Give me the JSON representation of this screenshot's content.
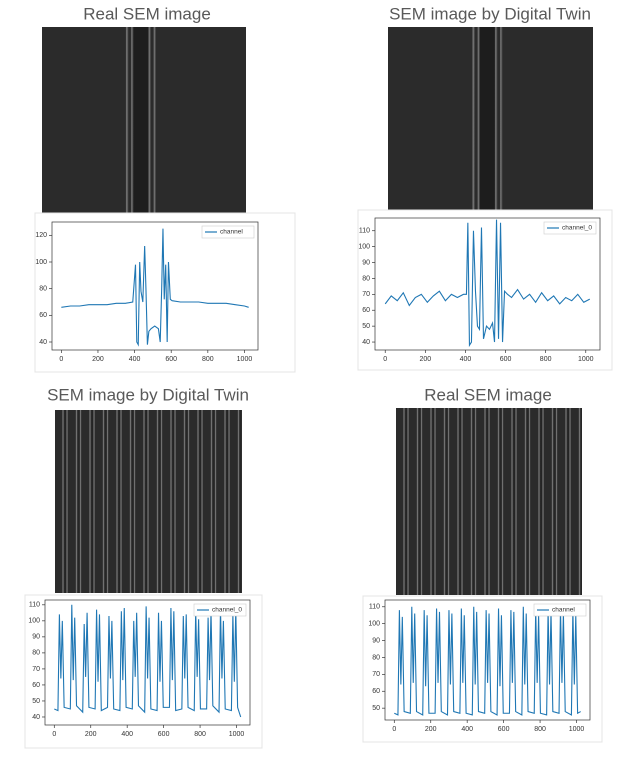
{
  "chart_data": [
    {
      "type": "line",
      "title": "Real SEM image",
      "x": [
        0,
        50,
        100,
        150,
        200,
        250,
        300,
        350,
        390,
        405,
        412,
        420,
        428,
        435,
        445,
        455,
        462,
        470,
        478,
        490,
        510,
        530,
        540,
        548,
        555,
        562,
        570,
        578,
        585,
        595,
        605,
        650,
        700,
        750,
        800,
        850,
        900,
        950,
        1000,
        1023
      ],
      "series": [
        {
          "name": "channel",
          "color": "#1f77b4",
          "values": [
            66,
            67,
            67,
            68,
            68,
            68,
            69,
            69,
            70,
            98,
            40,
            38,
            100,
            78,
            70,
            112,
            80,
            38,
            48,
            50,
            52,
            50,
            40,
            80,
            125,
            72,
            98,
            40,
            100,
            72,
            71,
            70,
            70,
            70,
            69,
            69,
            69,
            68,
            67,
            66
          ]
        }
      ],
      "xlim": [
        -51,
        1074
      ],
      "ylim": [
        34,
        130
      ],
      "xticks": [
        0,
        200,
        400,
        600,
        800,
        1000
      ],
      "yticks": [
        40,
        60,
        80,
        100,
        120
      ],
      "legend": "upper right"
    },
    {
      "type": "line",
      "title": "SEM image by Digital Twin",
      "x": [
        0,
        30,
        60,
        90,
        120,
        150,
        180,
        210,
        240,
        270,
        300,
        330,
        360,
        390,
        405,
        412,
        420,
        430,
        440,
        450,
        460,
        470,
        480,
        490,
        505,
        520,
        535,
        545,
        555,
        565,
        575,
        585,
        595,
        610,
        630,
        660,
        690,
        720,
        750,
        780,
        810,
        840,
        870,
        900,
        930,
        960,
        990,
        1020
      ],
      "series": [
        {
          "name": "channel_0",
          "color": "#1f77b4",
          "values": [
            64,
            69,
            66,
            71,
            63,
            68,
            70,
            65,
            69,
            72,
            66,
            70,
            68,
            70,
            70,
            115,
            38,
            40,
            110,
            72,
            50,
            48,
            112,
            42,
            50,
            48,
            52,
            40,
            117,
            42,
            115,
            40,
            72,
            70,
            68,
            73,
            67,
            70,
            65,
            71,
            66,
            69,
            64,
            68,
            66,
            70,
            65,
            67
          ]
        }
      ],
      "xlim": [
        -51,
        1071
      ],
      "ylim": [
        35,
        118
      ],
      "xticks": [
        0,
        200,
        400,
        600,
        800,
        1000
      ],
      "yticks": [
        40,
        50,
        60,
        70,
        80,
        90,
        100,
        110
      ],
      "legend": "upper right"
    },
    {
      "type": "line",
      "title": "SEM image by Digital Twin",
      "x": [
        0,
        20,
        28,
        36,
        44,
        54,
        88,
        96,
        104,
        112,
        122,
        156,
        164,
        172,
        180,
        190,
        224,
        232,
        240,
        248,
        258,
        292,
        300,
        308,
        316,
        326,
        360,
        368,
        376,
        384,
        394,
        428,
        436,
        444,
        452,
        462,
        496,
        504,
        512,
        520,
        530,
        564,
        572,
        580,
        588,
        598,
        632,
        640,
        648,
        656,
        666,
        700,
        708,
        716,
        724,
        734,
        768,
        776,
        784,
        792,
        802,
        836,
        844,
        852,
        860,
        870,
        904,
        912,
        920,
        928,
        938,
        972,
        980,
        988,
        996,
        1006,
        1023
      ],
      "series": [
        {
          "name": "channel_0",
          "color": "#1f77b4",
          "values": [
            45,
            44,
            104,
            64,
            100,
            46,
            45,
            110,
            63,
            102,
            47,
            43,
            98,
            65,
            105,
            46,
            45,
            107,
            62,
            104,
            44,
            46,
            103,
            64,
            100,
            45,
            44,
            106,
            63,
            108,
            46,
            45,
            100,
            65,
            105,
            47,
            43,
            109,
            64,
            102,
            45,
            44,
            105,
            62,
            100,
            46,
            46,
            108,
            63,
            106,
            44,
            45,
            103,
            64,
            104,
            46,
            44,
            107,
            65,
            101,
            45,
            45,
            102,
            63,
            106,
            47,
            43,
            108,
            64,
            100,
            45,
            44,
            104,
            62,
            107,
            46,
            40
          ]
        }
      ],
      "xlim": [
        -51,
        1074
      ],
      "ylim": [
        35,
        113
      ],
      "xticks": [
        0,
        200,
        400,
        600,
        800,
        1000
      ],
      "yticks": [
        40,
        50,
        60,
        70,
        80,
        90,
        100,
        110
      ],
      "legend": "upper right"
    },
    {
      "type": "line",
      "title": "Real SEM image",
      "x": [
        0,
        20,
        28,
        36,
        44,
        54,
        88,
        96,
        104,
        112,
        122,
        156,
        164,
        172,
        180,
        190,
        224,
        232,
        240,
        248,
        258,
        292,
        300,
        308,
        316,
        326,
        360,
        368,
        376,
        384,
        394,
        428,
        436,
        444,
        452,
        462,
        496,
        504,
        512,
        520,
        530,
        564,
        572,
        580,
        588,
        598,
        632,
        640,
        648,
        656,
        666,
        700,
        708,
        716,
        724,
        734,
        768,
        776,
        784,
        792,
        802,
        836,
        844,
        852,
        860,
        870,
        904,
        912,
        920,
        928,
        938,
        972,
        980,
        988,
        996,
        1006,
        1023
      ],
      "series": [
        {
          "name": "channel",
          "color": "#1f77b4",
          "values": [
            47,
            46,
            108,
            64,
            104,
            48,
            47,
            110,
            65,
            106,
            48,
            46,
            108,
            63,
            105,
            47,
            47,
            109,
            65,
            107,
            48,
            46,
            108,
            64,
            106,
            48,
            47,
            109,
            65,
            105,
            47,
            46,
            110,
            64,
            107,
            48,
            47,
            108,
            65,
            106,
            48,
            46,
            109,
            63,
            105,
            47,
            47,
            108,
            65,
            107,
            48,
            46,
            110,
            64,
            106,
            48,
            47,
            109,
            65,
            105,
            47,
            46,
            108,
            64,
            107,
            48,
            47,
            109,
            65,
            106,
            48,
            46,
            108,
            64,
            105,
            47,
            48
          ]
        }
      ],
      "xlim": [
        -51,
        1074
      ],
      "ylim": [
        43,
        114
      ],
      "xticks": [
        0,
        200,
        400,
        600,
        800,
        1000
      ],
      "yticks": [
        50,
        60,
        70,
        80,
        90,
        100,
        110
      ],
      "legend": "upper right"
    }
  ]
}
